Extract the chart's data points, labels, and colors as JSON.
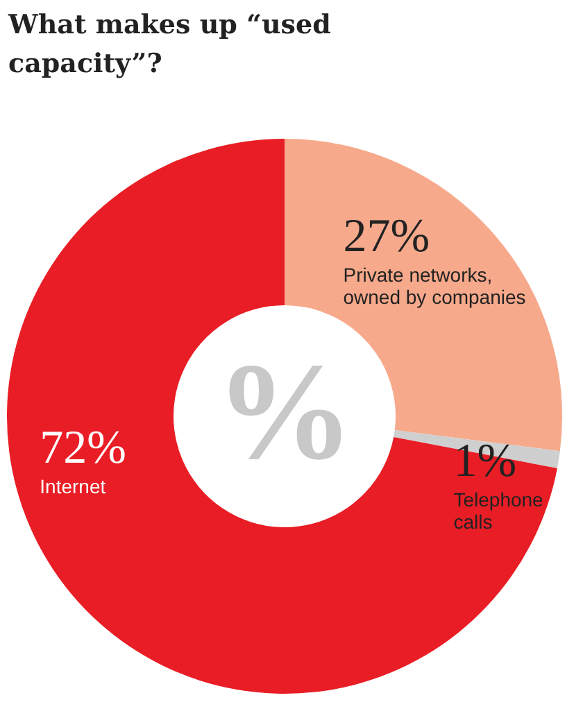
{
  "chart_data": {
    "type": "donut",
    "title": "What makes up “used capacity”?",
    "categories": [
      "Private networks, owned by companies",
      "Telephone calls",
      "Internet"
    ],
    "values": [
      27,
      1,
      72
    ],
    "colors": [
      "#f7a98b",
      "#cfcfcf",
      "#e91d25"
    ],
    "value_labels": [
      "27%",
      "1%",
      "72%"
    ],
    "legend": false,
    "annotations": [
      "%"
    ]
  }
}
